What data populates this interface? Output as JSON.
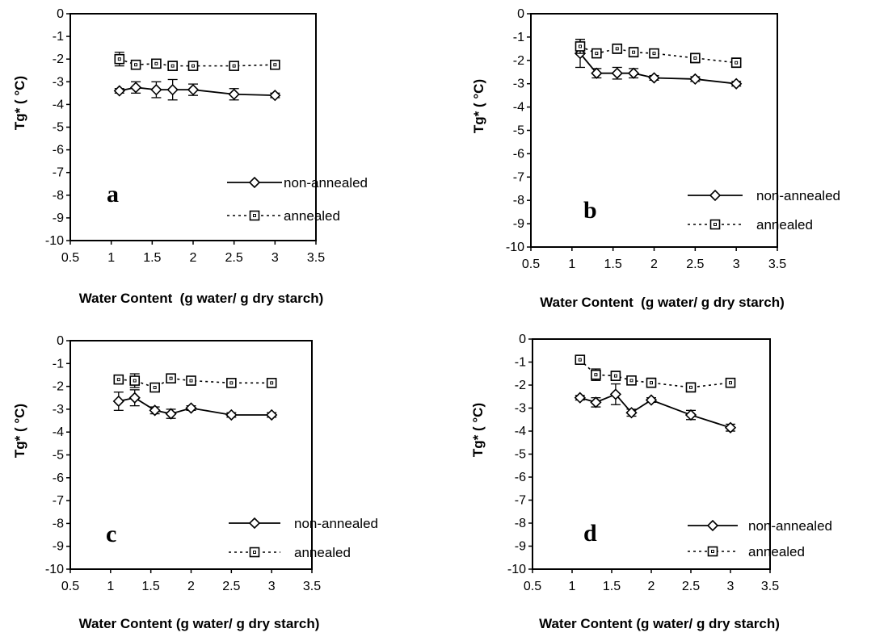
{
  "chart_data": [
    {
      "type": "line",
      "panel_label": "a",
      "xlabel": "Water Content  (g water/ g dry starch)",
      "ylabel": "Tg* ( °C)",
      "xlim": [
        0.5,
        3.5
      ],
      "ylim": [
        -10,
        0
      ],
      "x_ticks": [
        "0.5",
        "1",
        "1.5",
        "2",
        "2.5",
        "3",
        "3.5"
      ],
      "y_ticks": [
        "0",
        "-1",
        "-2",
        "-3",
        "-4",
        "-5",
        "-6",
        "-7",
        "-8",
        "-9",
        "-10"
      ],
      "legend_position": "lower-right",
      "grid": false,
      "x": [
        1.1,
        1.3,
        1.55,
        1.75,
        2.0,
        2.5,
        3.0
      ],
      "series": [
        {
          "name": "non-annealed",
          "marker": "diamond",
          "line": "solid",
          "values": [
            -3.4,
            -3.25,
            -3.35,
            -3.35,
            -3.35,
            -3.55,
            -3.6
          ],
          "errors": [
            0.1,
            0.25,
            0.35,
            0.45,
            0.25,
            0.25,
            0.1
          ]
        },
        {
          "name": "annealed",
          "marker": "square",
          "line": "dotted",
          "values": [
            -2.0,
            -2.25,
            -2.2,
            -2.3,
            -2.3,
            -2.3,
            -2.25
          ],
          "errors": [
            0.3,
            0.2,
            0.15,
            0.2,
            0.15,
            0.15,
            0.1
          ]
        }
      ]
    },
    {
      "type": "line",
      "panel_label": "b",
      "xlabel": "Water Content  (g water/ g dry starch)",
      "ylabel": "Tg* ( °C)",
      "xlim": [
        0.5,
        3.5
      ],
      "ylim": [
        -10,
        0
      ],
      "x_ticks": [
        "0.5",
        "1",
        "1.5",
        "2",
        "2.5",
        "3",
        "3.5"
      ],
      "y_ticks": [
        "0",
        "-1",
        "-2",
        "-3",
        "-4",
        "-5",
        "-6",
        "-7",
        "-8",
        "-9",
        "-10"
      ],
      "legend_position": "lower-right",
      "grid": false,
      "x": [
        1.1,
        1.3,
        1.55,
        1.75,
        2.0,
        2.5,
        3.0
      ],
      "series": [
        {
          "name": "non-annealed",
          "marker": "diamond",
          "line": "solid",
          "values": [
            -1.7,
            -2.55,
            -2.55,
            -2.55,
            -2.75,
            -2.8,
            -3.0
          ],
          "errors": [
            0.6,
            0.2,
            0.25,
            0.2,
            0.1,
            0.1,
            0.1
          ]
        },
        {
          "name": "annealed",
          "marker": "square",
          "line": "dotted",
          "values": [
            -1.4,
            -1.7,
            -1.5,
            -1.65,
            -1.7,
            -1.9,
            -2.1
          ],
          "errors": [
            0.3,
            0.15,
            0.2,
            0.2,
            0.15,
            0.2,
            0.2
          ]
        }
      ]
    },
    {
      "type": "line",
      "panel_label": "c",
      "xlabel": "Water Content (g water/ g dry starch)",
      "ylabel": "Tg* ( °C)",
      "xlim": [
        0.5,
        3.5
      ],
      "ylim": [
        -10,
        0
      ],
      "x_ticks": [
        "0.5",
        "1",
        "1.5",
        "2",
        "2.5",
        "3",
        "3.5"
      ],
      "y_ticks": [
        "0",
        "-1",
        "-2",
        "-3",
        "-4",
        "-5",
        "-6",
        "-7",
        "-8",
        "-9",
        "-10"
      ],
      "legend_position": "lower-right",
      "grid": false,
      "x": [
        1.1,
        1.3,
        1.55,
        1.75,
        2.0,
        2.5,
        3.0
      ],
      "series": [
        {
          "name": "non-annealed",
          "marker": "diamond",
          "line": "solid",
          "values": [
            -2.65,
            -2.5,
            -3.05,
            -3.2,
            -2.95,
            -3.25,
            -3.25
          ],
          "errors": [
            0.4,
            0.35,
            0.15,
            0.2,
            0.1,
            0.1,
            0.1
          ]
        },
        {
          "name": "annealed",
          "marker": "square",
          "line": "dotted",
          "values": [
            -1.7,
            -1.75,
            -2.05,
            -1.65,
            -1.75,
            -1.85,
            -1.85
          ],
          "errors": [
            0.1,
            0.3,
            0.15,
            0.15,
            0.1,
            0.1,
            0.1
          ]
        }
      ]
    },
    {
      "type": "line",
      "panel_label": "d",
      "xlabel": "Water Content (g water/ g dry starch)",
      "ylabel": "Tg* ( °C)",
      "xlim": [
        0.5,
        3.5
      ],
      "ylim": [
        -10,
        0
      ],
      "x_ticks": [
        "0.5",
        "1",
        "1.5",
        "2",
        "2.5",
        "3",
        "3.5"
      ],
      "y_ticks": [
        "0",
        "-1",
        "-2",
        "-3",
        "-4",
        "-5",
        "-6",
        "-7",
        "-8",
        "-9",
        "-10"
      ],
      "legend_position": "lower-right",
      "grid": false,
      "x": [
        1.1,
        1.3,
        1.55,
        1.75,
        2.0,
        2.5,
        3.0
      ],
      "series": [
        {
          "name": "non-annealed",
          "marker": "diamond",
          "line": "solid",
          "values": [
            -2.55,
            -2.75,
            -2.4,
            -3.2,
            -2.65,
            -3.3,
            -3.85
          ],
          "errors": [
            0.1,
            0.2,
            0.45,
            0.15,
            0.1,
            0.2,
            0.15
          ]
        },
        {
          "name": "annealed",
          "marker": "square",
          "line": "dotted",
          "values": [
            -0.9,
            -1.55,
            -1.6,
            -1.8,
            -1.9,
            -2.1,
            -1.9
          ],
          "errors": [
            0.15,
            0.25,
            0.2,
            0.15,
            0.2,
            0.2,
            0.15
          ]
        }
      ]
    }
  ]
}
